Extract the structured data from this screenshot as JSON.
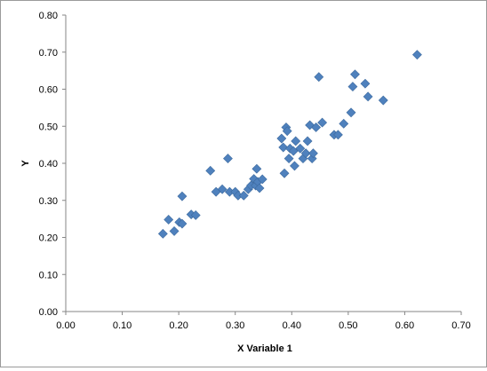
{
  "chart_data": {
    "type": "scatter",
    "title": "",
    "xlabel": "X Variable  1",
    "ylabel": "Y",
    "xlim": [
      0,
      0.7
    ],
    "ylim": [
      0,
      0.8
    ],
    "xticks": [
      "0.00",
      "0.10",
      "0.20",
      "0.30",
      "0.40",
      "0.50",
      "0.60",
      "0.70"
    ],
    "yticks": [
      "0.00",
      "0.10",
      "0.20",
      "0.30",
      "0.40",
      "0.50",
      "0.60",
      "0.70",
      "0.80"
    ],
    "grid": false,
    "legend": "none",
    "marker": "diamond",
    "marker_color": "#4f81bd",
    "points": [
      [
        0.172,
        0.21
      ],
      [
        0.182,
        0.248
      ],
      [
        0.192,
        0.217
      ],
      [
        0.201,
        0.241
      ],
      [
        0.206,
        0.237
      ],
      [
        0.206,
        0.311
      ],
      [
        0.222,
        0.262
      ],
      [
        0.23,
        0.26
      ],
      [
        0.256,
        0.38
      ],
      [
        0.266,
        0.323
      ],
      [
        0.277,
        0.33
      ],
      [
        0.287,
        0.413
      ],
      [
        0.29,
        0.323
      ],
      [
        0.3,
        0.323
      ],
      [
        0.305,
        0.313
      ],
      [
        0.315,
        0.313
      ],
      [
        0.323,
        0.33
      ],
      [
        0.328,
        0.34
      ],
      [
        0.333,
        0.358
      ],
      [
        0.336,
        0.34
      ],
      [
        0.338,
        0.385
      ],
      [
        0.34,
        0.35
      ],
      [
        0.343,
        0.333
      ],
      [
        0.348,
        0.357
      ],
      [
        0.382,
        0.467
      ],
      [
        0.385,
        0.443
      ],
      [
        0.387,
        0.373
      ],
      [
        0.39,
        0.497
      ],
      [
        0.392,
        0.487
      ],
      [
        0.395,
        0.413
      ],
      [
        0.397,
        0.44
      ],
      [
        0.403,
        0.433
      ],
      [
        0.405,
        0.393
      ],
      [
        0.407,
        0.46
      ],
      [
        0.415,
        0.44
      ],
      [
        0.42,
        0.413
      ],
      [
        0.425,
        0.427
      ],
      [
        0.428,
        0.46
      ],
      [
        0.432,
        0.503
      ],
      [
        0.436,
        0.413
      ],
      [
        0.438,
        0.427
      ],
      [
        0.443,
        0.497
      ],
      [
        0.448,
        0.633
      ],
      [
        0.454,
        0.51
      ],
      [
        0.475,
        0.477
      ],
      [
        0.482,
        0.477
      ],
      [
        0.492,
        0.507
      ],
      [
        0.505,
        0.537
      ],
      [
        0.508,
        0.607
      ],
      [
        0.512,
        0.64
      ],
      [
        0.53,
        0.615
      ],
      [
        0.535,
        0.58
      ],
      [
        0.562,
        0.57
      ],
      [
        0.622,
        0.693
      ]
    ]
  }
}
